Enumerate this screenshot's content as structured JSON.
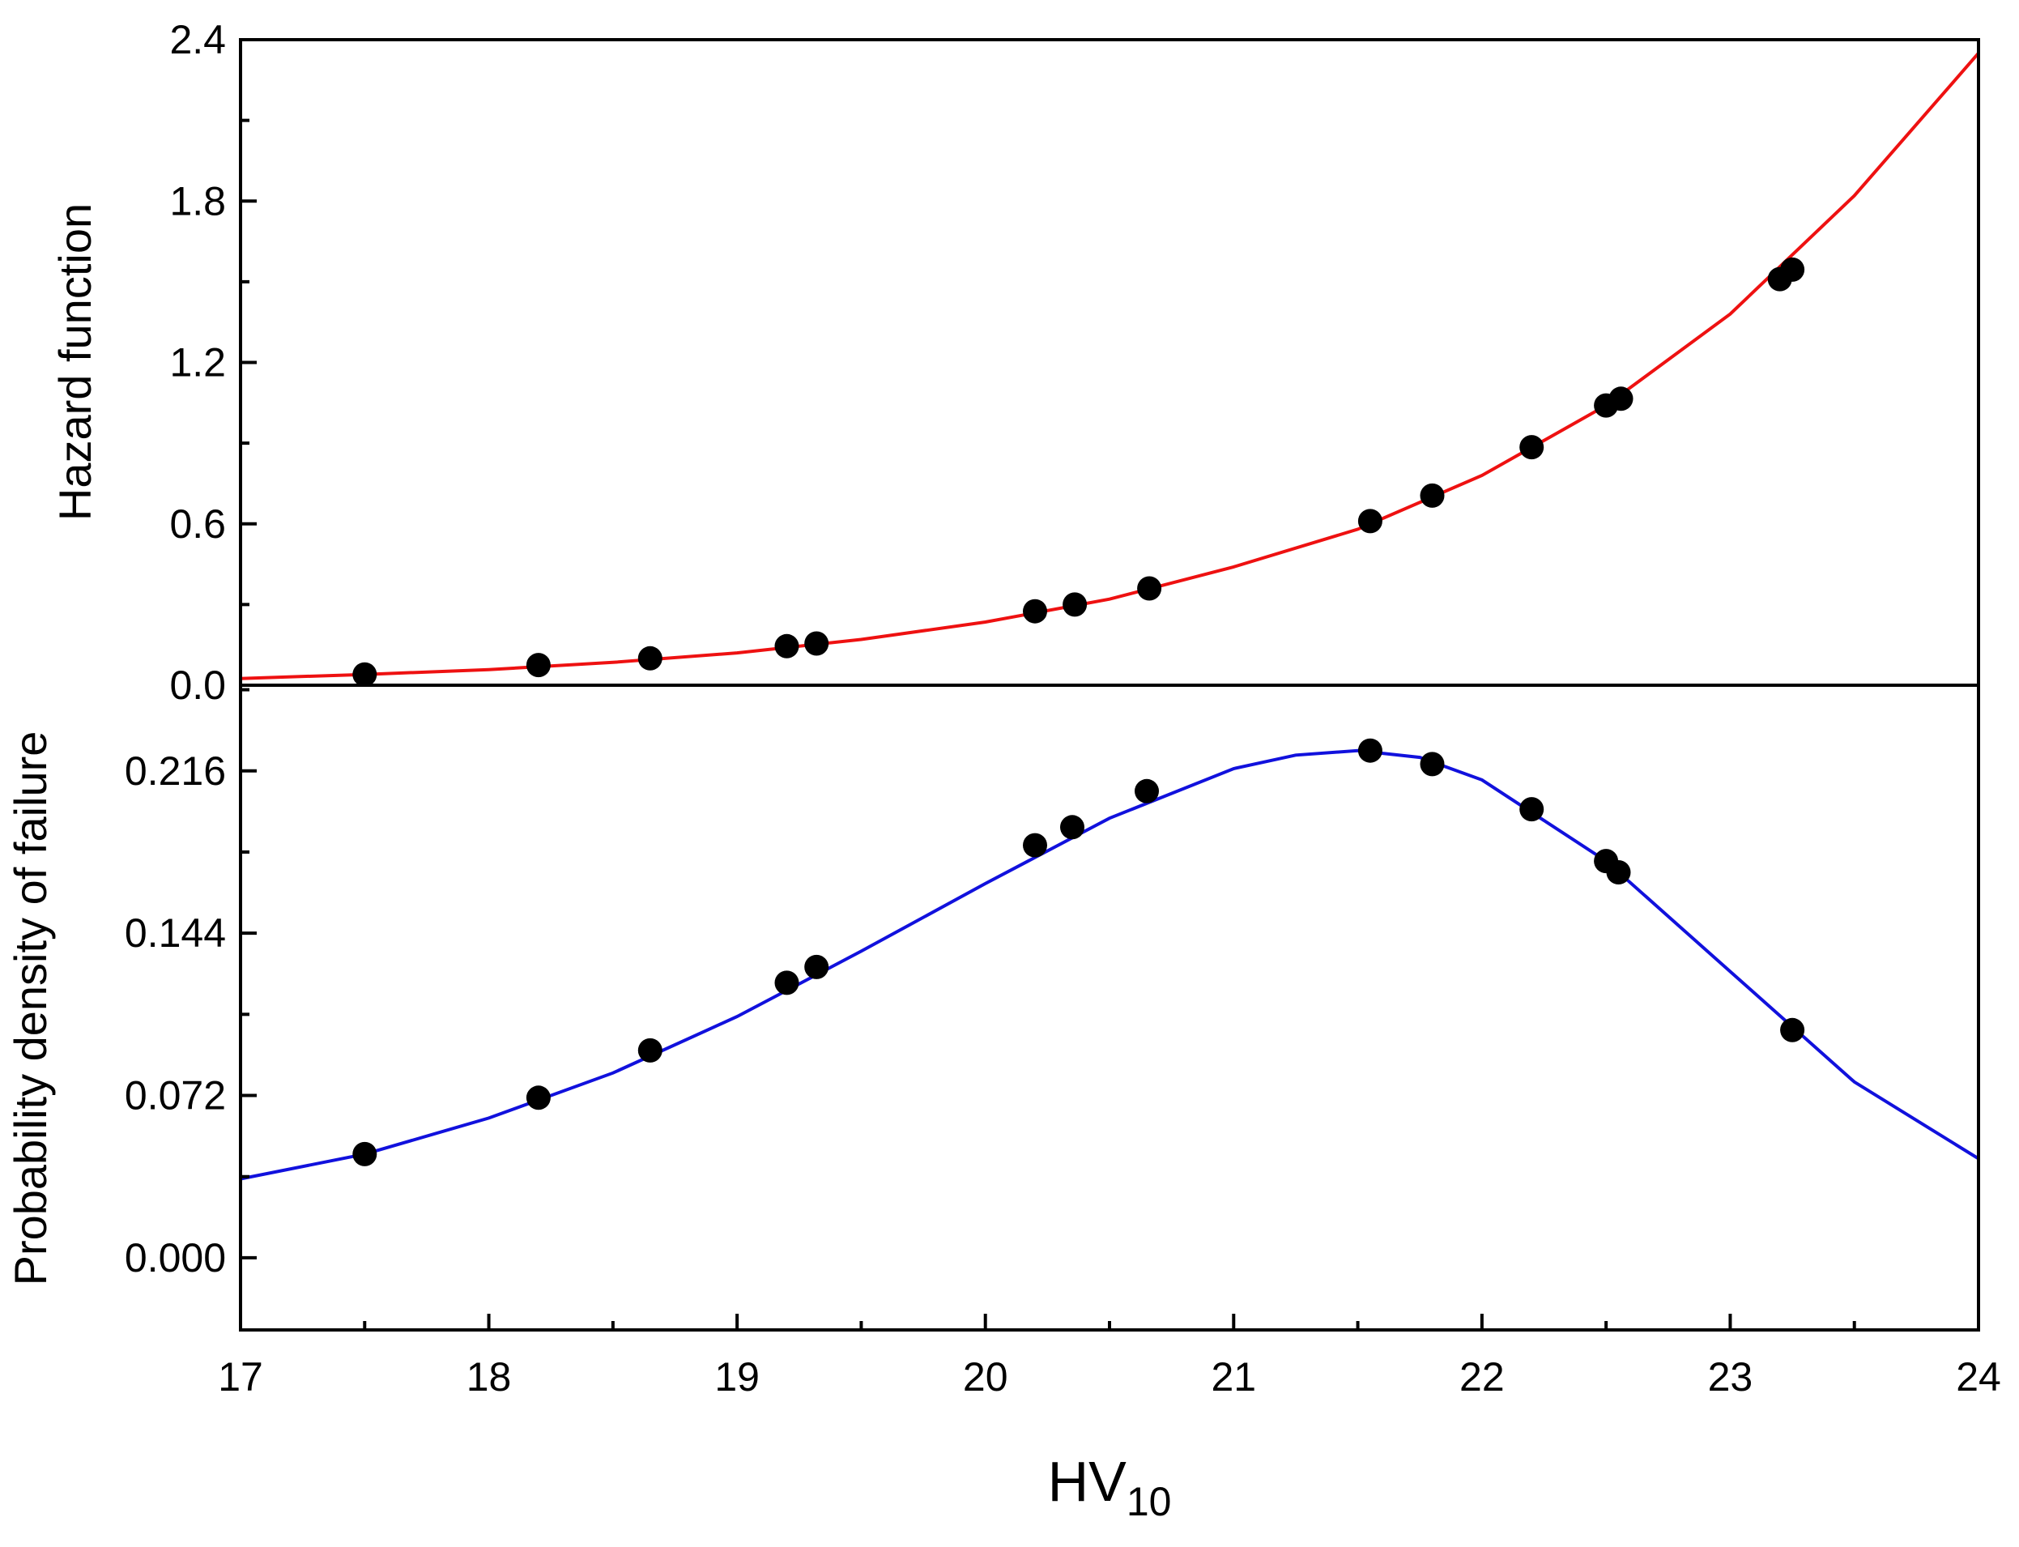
{
  "chart_data": [
    {
      "id": "top",
      "type": "scatter",
      "title": "",
      "xlabel": "",
      "ylabel": "Hazard function",
      "xlim": [
        17,
        24
      ],
      "ylim": [
        0,
        2.4
      ],
      "yticks": [
        "0.0",
        "0.6",
        "1.2",
        "1.8",
        "2.4"
      ],
      "ytick_values": [
        0,
        0.6,
        1.2,
        1.8,
        2.4
      ],
      "series": [
        {
          "name": "data",
          "marker": "circle",
          "color": "#000000",
          "x": [
            17.5,
            18.2,
            18.65,
            19.2,
            19.32,
            20.2,
            20.36,
            20.66,
            21.55,
            21.8,
            22.2,
            22.5,
            22.56,
            23.2,
            23.25
          ],
          "y": [
            0.04,
            0.075,
            0.1,
            0.145,
            0.155,
            0.275,
            0.3,
            0.36,
            0.61,
            0.705,
            0.885,
            1.04,
            1.065,
            1.51,
            1.545
          ]
        },
        {
          "name": "fit",
          "line": true,
          "color": "#ee1111",
          "x": [
            17.0,
            17.5,
            18.0,
            18.5,
            19.0,
            19.5,
            20.0,
            20.5,
            21.0,
            21.5,
            22.0,
            22.5,
            23.0,
            23.5,
            24.0
          ],
          "y": [
            0.025,
            0.04,
            0.058,
            0.085,
            0.12,
            0.17,
            0.235,
            0.32,
            0.44,
            0.58,
            0.78,
            1.04,
            1.38,
            1.82,
            2.35
          ]
        }
      ]
    },
    {
      "id": "bottom",
      "type": "scatter",
      "title": "",
      "xlabel": "HV",
      "xlabel_subscript": "10",
      "ylabel": "Probability density of failure",
      "xlim": [
        17,
        24
      ],
      "ylim": [
        -0.032,
        0.254
      ],
      "xticks": [
        "17",
        "18",
        "19",
        "20",
        "21",
        "22",
        "23",
        "24"
      ],
      "xtick_values": [
        17,
        18,
        19,
        20,
        21,
        22,
        23,
        24
      ],
      "yticks": [
        "0.000",
        "0.072",
        "0.144",
        "0.216"
      ],
      "ytick_values": [
        0,
        0.072,
        0.144,
        0.216
      ],
      "series": [
        {
          "name": "data",
          "marker": "circle",
          "color": "#000000",
          "x": [
            17.5,
            18.2,
            18.65,
            19.2,
            19.32,
            20.2,
            20.35,
            20.65,
            21.55,
            21.8,
            22.2,
            22.5,
            22.55,
            23.25
          ],
          "y": [
            0.046,
            0.071,
            0.092,
            0.122,
            0.129,
            0.183,
            0.191,
            0.207,
            0.225,
            0.219,
            0.199,
            0.176,
            0.171,
            0.101
          ]
        },
        {
          "name": "fit",
          "line": true,
          "color": "#1111dd",
          "x": [
            17.0,
            17.5,
            18.0,
            18.5,
            19.0,
            19.5,
            20.0,
            20.5,
            21.0,
            21.25,
            21.5,
            21.75,
            22.0,
            22.5,
            23.0,
            23.5,
            24.0
          ],
          "y": [
            0.035,
            0.046,
            0.062,
            0.082,
            0.107,
            0.136,
            0.166,
            0.195,
            0.217,
            0.223,
            0.225,
            0.222,
            0.212,
            0.176,
            0.127,
            0.078,
            0.044
          ]
        }
      ]
    }
  ]
}
